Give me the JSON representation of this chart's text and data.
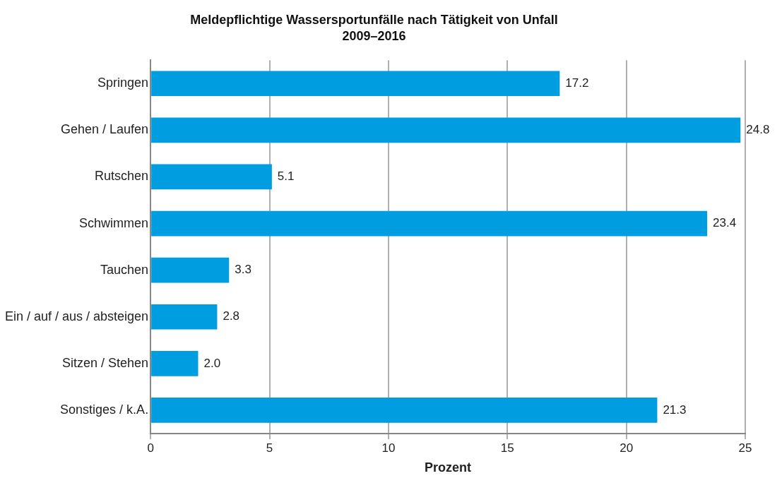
{
  "chart_data": {
    "type": "bar",
    "orientation": "horizontal",
    "title": "Meldepflichtige Wassersportunfälle nach Tätigkeit von Unfall",
    "subtitle": "2009–2016",
    "xlabel": "Prozent",
    "categories": [
      "Springen",
      "Gehen / Laufen",
      "Rutschen",
      "Schwimmen",
      "Tauchen",
      "Ein / auf / aus / absteigen",
      "Sitzen / Stehen",
      "Sonstiges / k.A."
    ],
    "values": [
      17.2,
      24.8,
      5.1,
      23.4,
      3.3,
      2.8,
      2.0,
      21.3
    ],
    "value_labels": [
      "17.2",
      "24.8",
      "5.1",
      "23.4",
      "3.3",
      "2.8",
      "2.0",
      "21.3"
    ],
    "color": "#009ee0",
    "xlim": [
      0,
      25
    ],
    "xticks": [
      0,
      5,
      10,
      15,
      20,
      25
    ],
    "grid": "x",
    "legend": false
  }
}
